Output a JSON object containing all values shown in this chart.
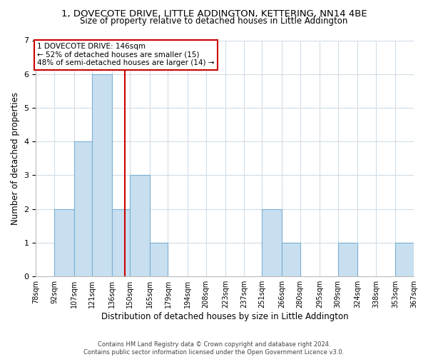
{
  "title1": "1, DOVECOTE DRIVE, LITTLE ADDINGTON, KETTERING, NN14 4BE",
  "title2": "Size of property relative to detached houses in Little Addington",
  "xlabel": "Distribution of detached houses by size in Little Addington",
  "ylabel": "Number of detached properties",
  "bin_edges": [
    78,
    92,
    107,
    121,
    136,
    150,
    165,
    179,
    194,
    208,
    223,
    237,
    251,
    266,
    280,
    295,
    309,
    324,
    338,
    353,
    367
  ],
  "bar_heights": [
    0,
    2,
    4,
    6,
    2,
    3,
    1,
    0,
    0,
    0,
    0,
    0,
    2,
    1,
    0,
    0,
    1,
    0,
    0,
    1
  ],
  "bar_color": "#c8dff0",
  "bar_edgecolor": "#7ab0d4",
  "red_line_x": 146,
  "ylim": [
    0,
    7
  ],
  "annotation_text": "1 DOVECOTE DRIVE: 146sqm\n← 52% of detached houses are smaller (15)\n48% of semi-detached houses are larger (14) →",
  "annotation_box_color": "#ffffff",
  "annotation_box_edgecolor": "#cc0000",
  "footer1": "Contains HM Land Registry data © Crown copyright and database right 2024.",
  "footer2": "Contains public sector information licensed under the Open Government Licence v3.0.",
  "tick_labels": [
    "78sqm",
    "92sqm",
    "107sqm",
    "121sqm",
    "136sqm",
    "150sqm",
    "165sqm",
    "179sqm",
    "194sqm",
    "208sqm",
    "223sqm",
    "237sqm",
    "251sqm",
    "266sqm",
    "280sqm",
    "295sqm",
    "309sqm",
    "324sqm",
    "338sqm",
    "353sqm",
    "367sqm"
  ],
  "bg_color": "#ffffff",
  "grid_color": "#d0dde8",
  "title1_fontsize": 9.5,
  "title2_fontsize": 8.5,
  "ylabel_fontsize": 8.5,
  "xlabel_fontsize": 8.5,
  "yticks": [
    0,
    1,
    2,
    3,
    4,
    5,
    6,
    7
  ]
}
